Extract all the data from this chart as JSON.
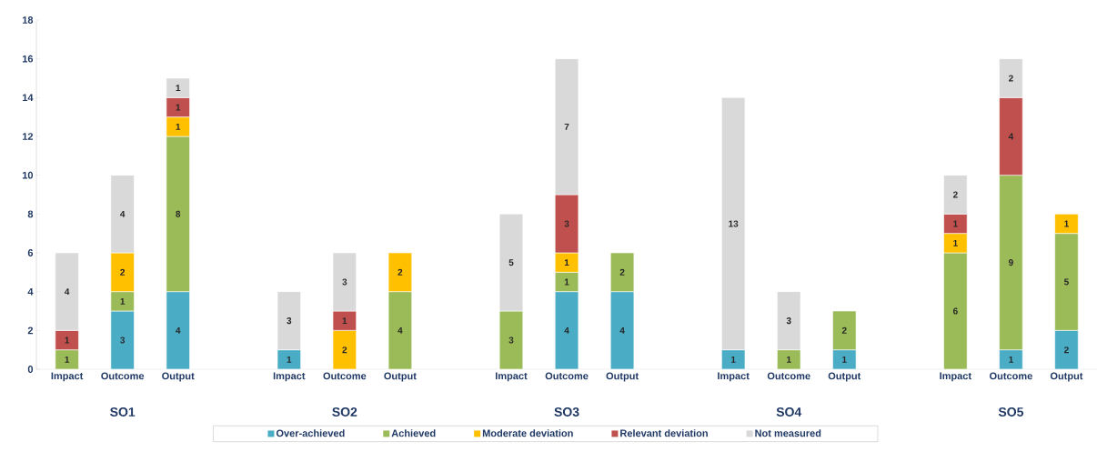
{
  "chart_data": {
    "type": "bar",
    "stacked": true,
    "data_labels": true,
    "legend": "bottom",
    "categories": [
      "Impact",
      "Outcome",
      "Output",
      null,
      "Impact",
      "Outcome",
      "Output",
      null,
      "Impact",
      "Outcome",
      "Output",
      null,
      "Impact",
      "Outcome",
      "Output",
      null,
      "Impact",
      "Outcome",
      "Output"
    ],
    "series": [
      {
        "name": "Over-achieved",
        "color": "#4bacc6",
        "values": [
          null,
          3,
          4,
          null,
          1,
          null,
          null,
          null,
          null,
          4,
          4,
          null,
          1,
          null,
          1,
          null,
          null,
          1,
          2
        ]
      },
      {
        "name": "Achieved",
        "color": "#9bbb59",
        "values": [
          1,
          1,
          8,
          null,
          null,
          null,
          4,
          null,
          3,
          1,
          2,
          null,
          null,
          1,
          2,
          null,
          6,
          9,
          5
        ]
      },
      {
        "name": "Moderate deviation",
        "color": "#ffc000",
        "values": [
          null,
          2,
          1,
          null,
          null,
          2,
          2,
          null,
          null,
          1,
          null,
          null,
          null,
          null,
          null,
          null,
          1,
          null,
          1
        ]
      },
      {
        "name": "Relevant deviation",
        "color": "#c0504d",
        "values": [
          1,
          null,
          1,
          null,
          null,
          1,
          null,
          null,
          null,
          3,
          null,
          null,
          null,
          null,
          null,
          null,
          1,
          4,
          null
        ]
      },
      {
        "name": "Not measured",
        "color": "#d9d9d9",
        "values": [
          4,
          4,
          1,
          null,
          3,
          3,
          null,
          null,
          5,
          7,
          null,
          null,
          13,
          3,
          null,
          null,
          2,
          2,
          null
        ]
      }
    ],
    "ylim": [
      0,
      18
    ],
    "yticks": [
      0,
      2,
      4,
      6,
      8,
      10,
      12,
      14,
      16,
      18
    ],
    "annotations": [
      "SO1",
      "SO2",
      "SO3",
      "SO4",
      "SO5"
    ]
  }
}
